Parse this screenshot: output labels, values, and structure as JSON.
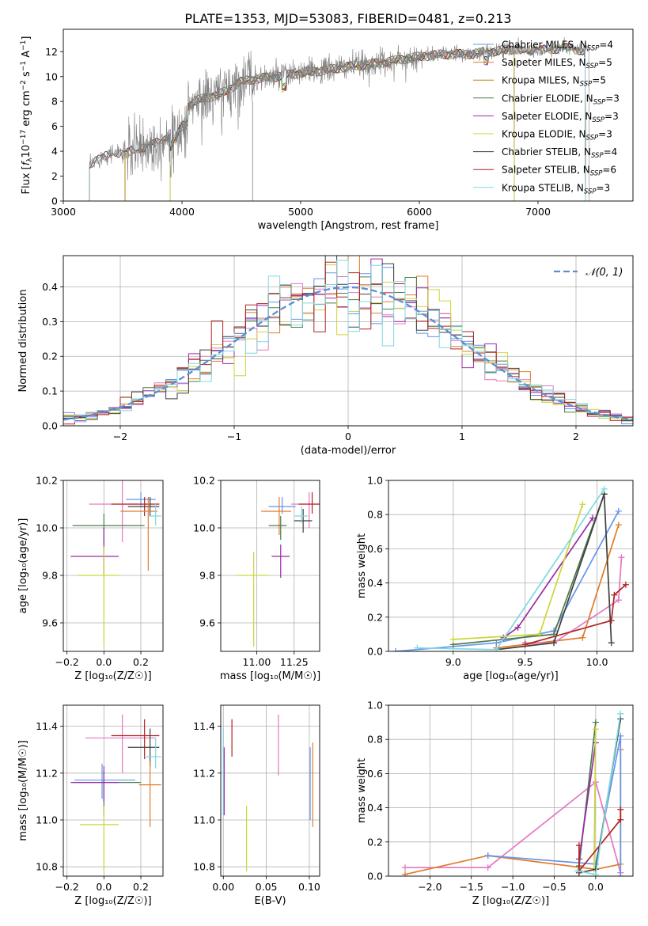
{
  "figure": {
    "title": "PLATE=1353, MJD=53083, FIBERID=0481, z=0.213"
  },
  "chart_data": [
    {
      "id": "spectrum",
      "type": "line",
      "xlabel": "wavelength [Angstrom, rest frame]",
      "ylabel_parts": [
        "Flux [",
        "f",
        "λ",
        "10",
        "−17",
        " erg cm",
        "−2",
        " s",
        "−1",
        " A",
        "−1",
        "]"
      ],
      "xlim": [
        3000,
        7800
      ],
      "ylim": [
        0,
        13.8
      ],
      "xticks": [
        3000,
        4000,
        5000,
        6000,
        7000
      ],
      "yticks": [
        0,
        2,
        4,
        6,
        8,
        10,
        12
      ],
      "legend_position": "right",
      "continuum": {
        "x": [
          3200,
          3300,
          3400,
          3500,
          3600,
          3700,
          3800,
          3900,
          4000,
          4100,
          4200,
          4300,
          4400,
          4500,
          4600,
          4800,
          5000,
          5200,
          5400,
          5600,
          5800,
          6000,
          6200,
          6400,
          6600,
          6800,
          7000,
          7200,
          7400,
          7700
        ],
        "y": [
          2.6,
          3.4,
          3.9,
          3.8,
          4.1,
          4.4,
          4.7,
          5.5,
          7.2,
          8.0,
          8.3,
          8.5,
          9.0,
          9.6,
          9.8,
          10.0,
          10.3,
          10.5,
          10.8,
          11.0,
          11.3,
          11.6,
          11.8,
          11.8,
          12.0,
          12.2,
          12.1,
          12.3,
          12.1,
          12.2
        ]
      },
      "series": [
        {
          "name_parts": [
            "Chabrier MILES, N",
            "SSP",
            "=4"
          ],
          "color": "#6495ed",
          "start": 3520,
          "end": 7400
        },
        {
          "name_parts": [
            "Salpeter MILES, N",
            "SSP",
            "=5"
          ],
          "color": "#e07b2a",
          "start": 3520,
          "end": 7400
        },
        {
          "name_parts": [
            "Kroupa MILES, N",
            "SSP",
            "=5"
          ],
          "color": "#b8860b",
          "start": 3520,
          "end": 7400
        },
        {
          "name_parts": [
            "Chabrier ELODIE, N",
            "SSP",
            "=3"
          ],
          "color": "#4c7c4c",
          "start": 3900,
          "end": 6800
        },
        {
          "name_parts": [
            "Salpeter ELODIE, N",
            "SSP",
            "=3"
          ],
          "color": "#9a2ba8",
          "start": 3900,
          "end": 6800
        },
        {
          "name_parts": [
            "Kroupa ELODIE, N",
            "SSP",
            "=3"
          ],
          "color": "#ccd63a",
          "start": 3900,
          "end": 6800
        },
        {
          "name_parts": [
            "Chabrier STELIB, N",
            "SSP",
            "=4"
          ],
          "color": "#404040",
          "start": 3220,
          "end": 7400
        },
        {
          "name_parts": [
            "Salpeter STELIB, N",
            "SSP",
            "=6"
          ],
          "color": "#b22222",
          "start": 3220,
          "end": 7400
        },
        {
          "name_parts": [
            "Kroupa STELIB, N",
            "SSP",
            "=3"
          ],
          "color": "#7fd8e0",
          "start": 3220,
          "end": 7400
        }
      ],
      "data_color": "#7f7f7f"
    },
    {
      "id": "residuals",
      "type": "line",
      "xlabel": "(data-model)/error",
      "ylabel": "Normed distribution",
      "xlim": [
        -2.5,
        2.5
      ],
      "ylim": [
        0,
        0.49
      ],
      "xticks": [
        -2,
        -1,
        0,
        1,
        2
      ],
      "yticks": [
        0.0,
        0.1,
        0.2,
        0.3,
        0.4
      ],
      "grid": true,
      "legend_position": "top-right",
      "legend_label": "𝒩(0, 1)",
      "normal_color": "#5a8fd6",
      "bin_width": 0.1,
      "histogram_colors": [
        "#6495ed",
        "#e07b2a",
        "#e377c2",
        "#4c7c4c",
        "#9a2ba8",
        "#ccd63a",
        "#404040",
        "#b22222",
        "#7fd8e0"
      ]
    },
    {
      "id": "age-vs-Z",
      "type": "scatter",
      "xlabel": "Z [log₁₀(Z/Z☉)]",
      "ylabel": "age  [log₁₀(age/yr)]",
      "xlim": [
        -0.22,
        0.32
      ],
      "ylim": [
        9.48,
        10.2
      ],
      "xticks": [
        -0.2,
        0.0,
        0.2
      ],
      "yticks": [
        9.6,
        9.8,
        10.0,
        10.2
      ],
      "grid": true,
      "points": [
        {
          "color": "#e377c2",
          "x": 0.1,
          "xerr": [
            0.18,
            0.2
          ],
          "y": 10.1,
          "yerr": [
            0.16,
            0.1
          ]
        },
        {
          "color": "#6495ed",
          "x": 0.2,
          "xerr": [
            0.08,
            0.08
          ],
          "y": 10.12,
          "yerr": [
            0.03,
            0.03
          ]
        },
        {
          "color": "#b22222",
          "x": 0.22,
          "xerr": [
            0.18,
            0.08
          ],
          "y": 10.1,
          "yerr": [
            0.05,
            0.03
          ]
        },
        {
          "color": "#404040",
          "x": 0.25,
          "xerr": [
            0.12,
            0.05
          ],
          "y": 10.09,
          "yerr": [
            0.04,
            0.04
          ]
        },
        {
          "color": "#e07b2a",
          "x": 0.24,
          "xerr": [
            0.15,
            0.05
          ],
          "y": 10.07,
          "yerr": [
            0.25,
            0.06
          ]
        },
        {
          "color": "#4c7c4c",
          "x": 0.0,
          "xerr": [
            0.17,
            0.22
          ],
          "y": 10.01,
          "yerr": [
            0.08,
            0.05
          ]
        },
        {
          "color": "#7fd8e0",
          "x": 0.28,
          "xerr": [
            0.04,
            0.03
          ],
          "y": 10.05,
          "yerr": [
            0.04,
            0.05
          ]
        },
        {
          "color": "#9a2ba8",
          "x": 0.0,
          "xerr": [
            0.18,
            0.08
          ],
          "y": 9.88,
          "yerr": [
            0.08,
            0.12
          ]
        },
        {
          "color": "#ccd63a",
          "x": 0.0,
          "xerr": [
            0.14,
            0.08
          ],
          "y": 9.8,
          "yerr": [
            0.3,
            0.12
          ]
        }
      ]
    },
    {
      "id": "age-vs-mass",
      "type": "scatter",
      "xlabel": "mass [log₁₀(M/M☉)]",
      "ylabel": "",
      "xlim": [
        10.76,
        11.42
      ],
      "ylim": [
        9.48,
        10.2
      ],
      "xticks": [
        11.0,
        11.25
      ],
      "yticks": [
        9.6,
        9.8,
        10.0,
        10.2
      ],
      "grid": true,
      "points": [
        {
          "color": "#e377c2",
          "x": 11.35,
          "xerr": [
            0.12,
            0.06
          ],
          "y": 10.1,
          "yerr": [
            0.1,
            0.05
          ]
        },
        {
          "color": "#6495ed",
          "x": 11.17,
          "xerr": [
            0.09,
            0.09
          ],
          "y": 10.09,
          "yerr": [
            0.03,
            0.04
          ]
        },
        {
          "color": "#b22222",
          "x": 11.37,
          "xerr": [
            0.09,
            0.05
          ],
          "y": 10.1,
          "yerr": [
            0.04,
            0.05
          ]
        },
        {
          "color": "#404040",
          "x": 11.31,
          "xerr": [
            0.06,
            0.06
          ],
          "y": 10.03,
          "yerr": [
            0.05,
            0.05
          ]
        },
        {
          "color": "#e07b2a",
          "x": 11.15,
          "xerr": [
            0.12,
            0.08
          ],
          "y": 10.07,
          "yerr": [
            0.1,
            0.06
          ]
        },
        {
          "color": "#4c7c4c",
          "x": 11.16,
          "xerr": [
            0.08,
            0.04
          ],
          "y": 10.01,
          "yerr": [
            0.06,
            0.04
          ]
        },
        {
          "color": "#7fd8e0",
          "x": 11.3,
          "xerr": [
            0.05,
            0.04
          ],
          "y": 10.05,
          "yerr": [
            0.03,
            0.04
          ]
        },
        {
          "color": "#9a2ba8",
          "x": 11.16,
          "xerr": [
            0.06,
            0.06
          ],
          "y": 9.88,
          "yerr": [
            0.09,
            0.05
          ]
        },
        {
          "color": "#ccd63a",
          "x": 10.98,
          "xerr": [
            0.12,
            0.1
          ],
          "y": 9.8,
          "yerr": [
            0.3,
            0.1
          ]
        }
      ]
    },
    {
      "id": "mass-weight-vs-age",
      "type": "line",
      "xlabel": "age  [log₁₀(age/yr)]",
      "ylabel": "mass weight",
      "xlim": [
        8.55,
        10.25
      ],
      "ylim": [
        0,
        1.0
      ],
      "xticks": [
        9.0,
        9.5,
        10.0
      ],
      "yticks": [
        0.0,
        0.2,
        0.4,
        0.6,
        0.8,
        1.0
      ],
      "grid": true,
      "series": [
        {
          "color": "#6495ed",
          "x": [
            8.6,
            9.3,
            9.7,
            10.15
          ],
          "y": [
            0.0,
            0.05,
            0.12,
            0.82
          ]
        },
        {
          "color": "#e07b2a",
          "x": [
            9.3,
            9.9,
            10.15
          ],
          "y": [
            0.02,
            0.08,
            0.74
          ]
        },
        {
          "color": "#e377c2",
          "x": [
            9.5,
            9.7,
            10.15,
            10.17
          ],
          "y": [
            0.05,
            0.05,
            0.3,
            0.55
          ]
        },
        {
          "color": "#4c7c4c",
          "x": [
            9.0,
            9.7,
            10.05
          ],
          "y": [
            0.04,
            0.1,
            0.92
          ]
        },
        {
          "color": "#9a2ba8",
          "x": [
            9.35,
            9.45,
            9.97
          ],
          "y": [
            0.08,
            0.14,
            0.78
          ]
        },
        {
          "color": "#ccd63a",
          "x": [
            9.0,
            9.6,
            9.9
          ],
          "y": [
            0.07,
            0.1,
            0.86
          ]
        },
        {
          "color": "#404040",
          "x": [
            9.3,
            9.7,
            10.05,
            10.1
          ],
          "y": [
            0.01,
            0.05,
            0.92,
            0.05
          ]
        },
        {
          "color": "#b22222",
          "x": [
            9.5,
            10.1,
            10.12,
            10.2
          ],
          "y": [
            0.04,
            0.18,
            0.33,
            0.39
          ]
        },
        {
          "color": "#7fd8e0",
          "x": [
            8.75,
            9.3,
            10.05
          ],
          "y": [
            0.02,
            0.01,
            0.95
          ]
        }
      ]
    },
    {
      "id": "mass-vs-Z",
      "type": "scatter",
      "xlabel": "Z [log₁₀(Z/Z☉)]",
      "ylabel": "mass [log₁₀(M/M☉)]",
      "xlim": [
        -0.22,
        0.32
      ],
      "ylim": [
        10.76,
        11.49
      ],
      "xticks": [
        -0.2,
        0.0,
        0.2
      ],
      "yticks": [
        10.8,
        11.0,
        11.2,
        11.4
      ],
      "grid": true,
      "points": [
        {
          "color": "#e377c2",
          "x": 0.1,
          "xerr": [
            0.2,
            0.18
          ],
          "y": 11.35,
          "yerr": [
            0.15,
            0.1
          ]
        },
        {
          "color": "#b22222",
          "x": 0.22,
          "xerr": [
            0.18,
            0.08
          ],
          "y": 11.36,
          "yerr": [
            0.1,
            0.07
          ]
        },
        {
          "color": "#404040",
          "x": 0.25,
          "xerr": [
            0.12,
            0.05
          ],
          "y": 11.31,
          "yerr": [
            0.08,
            0.08
          ]
        },
        {
          "color": "#7fd8e0",
          "x": 0.28,
          "xerr": [
            0.06,
            0.03
          ],
          "y": 11.27,
          "yerr": [
            0.05,
            0.08
          ]
        },
        {
          "color": "#e07b2a",
          "x": 0.25,
          "xerr": [
            0.06,
            0.06
          ],
          "y": 11.15,
          "yerr": [
            0.18,
            0.1
          ]
        },
        {
          "color": "#6495ed",
          "x": -0.01,
          "xerr": [
            0.15,
            0.18
          ],
          "y": 11.17,
          "yerr": [
            0.08,
            0.07
          ]
        },
        {
          "color": "#4c7c4c",
          "x": 0.0,
          "xerr": [
            0.17,
            0.2
          ],
          "y": 11.16,
          "yerr": [
            0.14,
            0.05
          ]
        },
        {
          "color": "#9a2ba8",
          "x": 0.0,
          "xerr": [
            0.18,
            0.08
          ],
          "y": 11.16,
          "yerr": [
            0.08,
            0.07
          ]
        },
        {
          "color": "#ccd63a",
          "x": 0.0,
          "xerr": [
            0.13,
            0.08
          ],
          "y": 10.98,
          "yerr": [
            0.2,
            0.08
          ]
        }
      ]
    },
    {
      "id": "mass-vs-EBV",
      "type": "scatter",
      "xlabel": "E(B-V)",
      "ylabel": "",
      "xlim": [
        -0.003,
        0.112
      ],
      "ylim": [
        10.76,
        11.49
      ],
      "xticks": [
        0.0,
        0.05,
        0.1
      ],
      "yticks": [
        10.8,
        11.0,
        11.2,
        11.4
      ],
      "grid": true,
      "points": [
        {
          "color": "#7fd8e0",
          "x": 0.0,
          "y": 11.22,
          "yerr": [
            0.2,
            0.17
          ]
        },
        {
          "color": "#9a2ba8",
          "x": 0.001,
          "y": 11.17,
          "yerr": [
            0.15,
            0.14
          ]
        },
        {
          "color": "#b22222",
          "x": 0.01,
          "y": 11.35,
          "yerr": [
            0.08,
            0.08
          ]
        },
        {
          "color": "#ccd63a",
          "x": 0.027,
          "y": 10.93,
          "yerr": [
            0.15,
            0.13
          ]
        },
        {
          "color": "#e377c2",
          "x": 0.064,
          "y": 11.32,
          "yerr": [
            0.13,
            0.13
          ]
        },
        {
          "color": "#6495ed",
          "x": 0.101,
          "y": 11.15,
          "yerr": [
            0.15,
            0.16
          ]
        },
        {
          "color": "#e07b2a",
          "x": 0.104,
          "y": 11.15,
          "yerr": [
            0.18,
            0.18
          ]
        }
      ]
    },
    {
      "id": "mass-weight-vs-Z",
      "type": "line",
      "xlabel": "Z [log₁₀(Z/Z☉)]",
      "ylabel": "mass weight",
      "xlim": [
        -2.5,
        0.45
      ],
      "ylim": [
        0,
        1.0
      ],
      "xticks": [
        -2.0,
        -1.5,
        -1.0,
        -0.5,
        0.0
      ],
      "yticks": [
        0.0,
        0.2,
        0.4,
        0.6,
        0.8,
        1.0
      ],
      "grid": true,
      "series": [
        {
          "color": "#e377c2",
          "x": [
            -2.3,
            -1.3,
            0.0,
            0.3
          ],
          "y": [
            0.05,
            0.05,
            0.55,
            0.02
          ]
        },
        {
          "color": "#e07b2a",
          "x": [
            -2.3,
            -1.3,
            0.0,
            0.3,
            0.3
          ],
          "y": [
            0.01,
            0.12,
            0.04,
            0.07,
            0.74
          ]
        },
        {
          "color": "#6495ed",
          "x": [
            -1.3,
            0.0,
            0.3,
            0.3
          ],
          "y": [
            0.12,
            0.07,
            0.82,
            0.0
          ]
        },
        {
          "color": "#4c7c4c",
          "x": [
            -0.2,
            0.0
          ],
          "y": [
            0.06,
            0.9
          ]
        },
        {
          "color": "#9a2ba8",
          "x": [
            -0.2,
            0.0
          ],
          "y": [
            0.1,
            0.78
          ]
        },
        {
          "color": "#ccd63a",
          "x": [
            0.0,
            -0.02
          ],
          "y": [
            0.86,
            0.04
          ]
        },
        {
          "color": "#404040",
          "x": [
            -0.2,
            0.0,
            0.3
          ],
          "y": [
            0.02,
            0.04,
            0.92
          ]
        },
        {
          "color": "#b22222",
          "x": [
            -0.2,
            -0.2,
            0.3,
            0.3
          ],
          "y": [
            0.18,
            0.03,
            0.33,
            0.39
          ]
        },
        {
          "color": "#7fd8e0",
          "x": [
            -0.22,
            0.0,
            0.3
          ],
          "y": [
            0.03,
            0.01,
            0.95
          ]
        }
      ]
    }
  ]
}
